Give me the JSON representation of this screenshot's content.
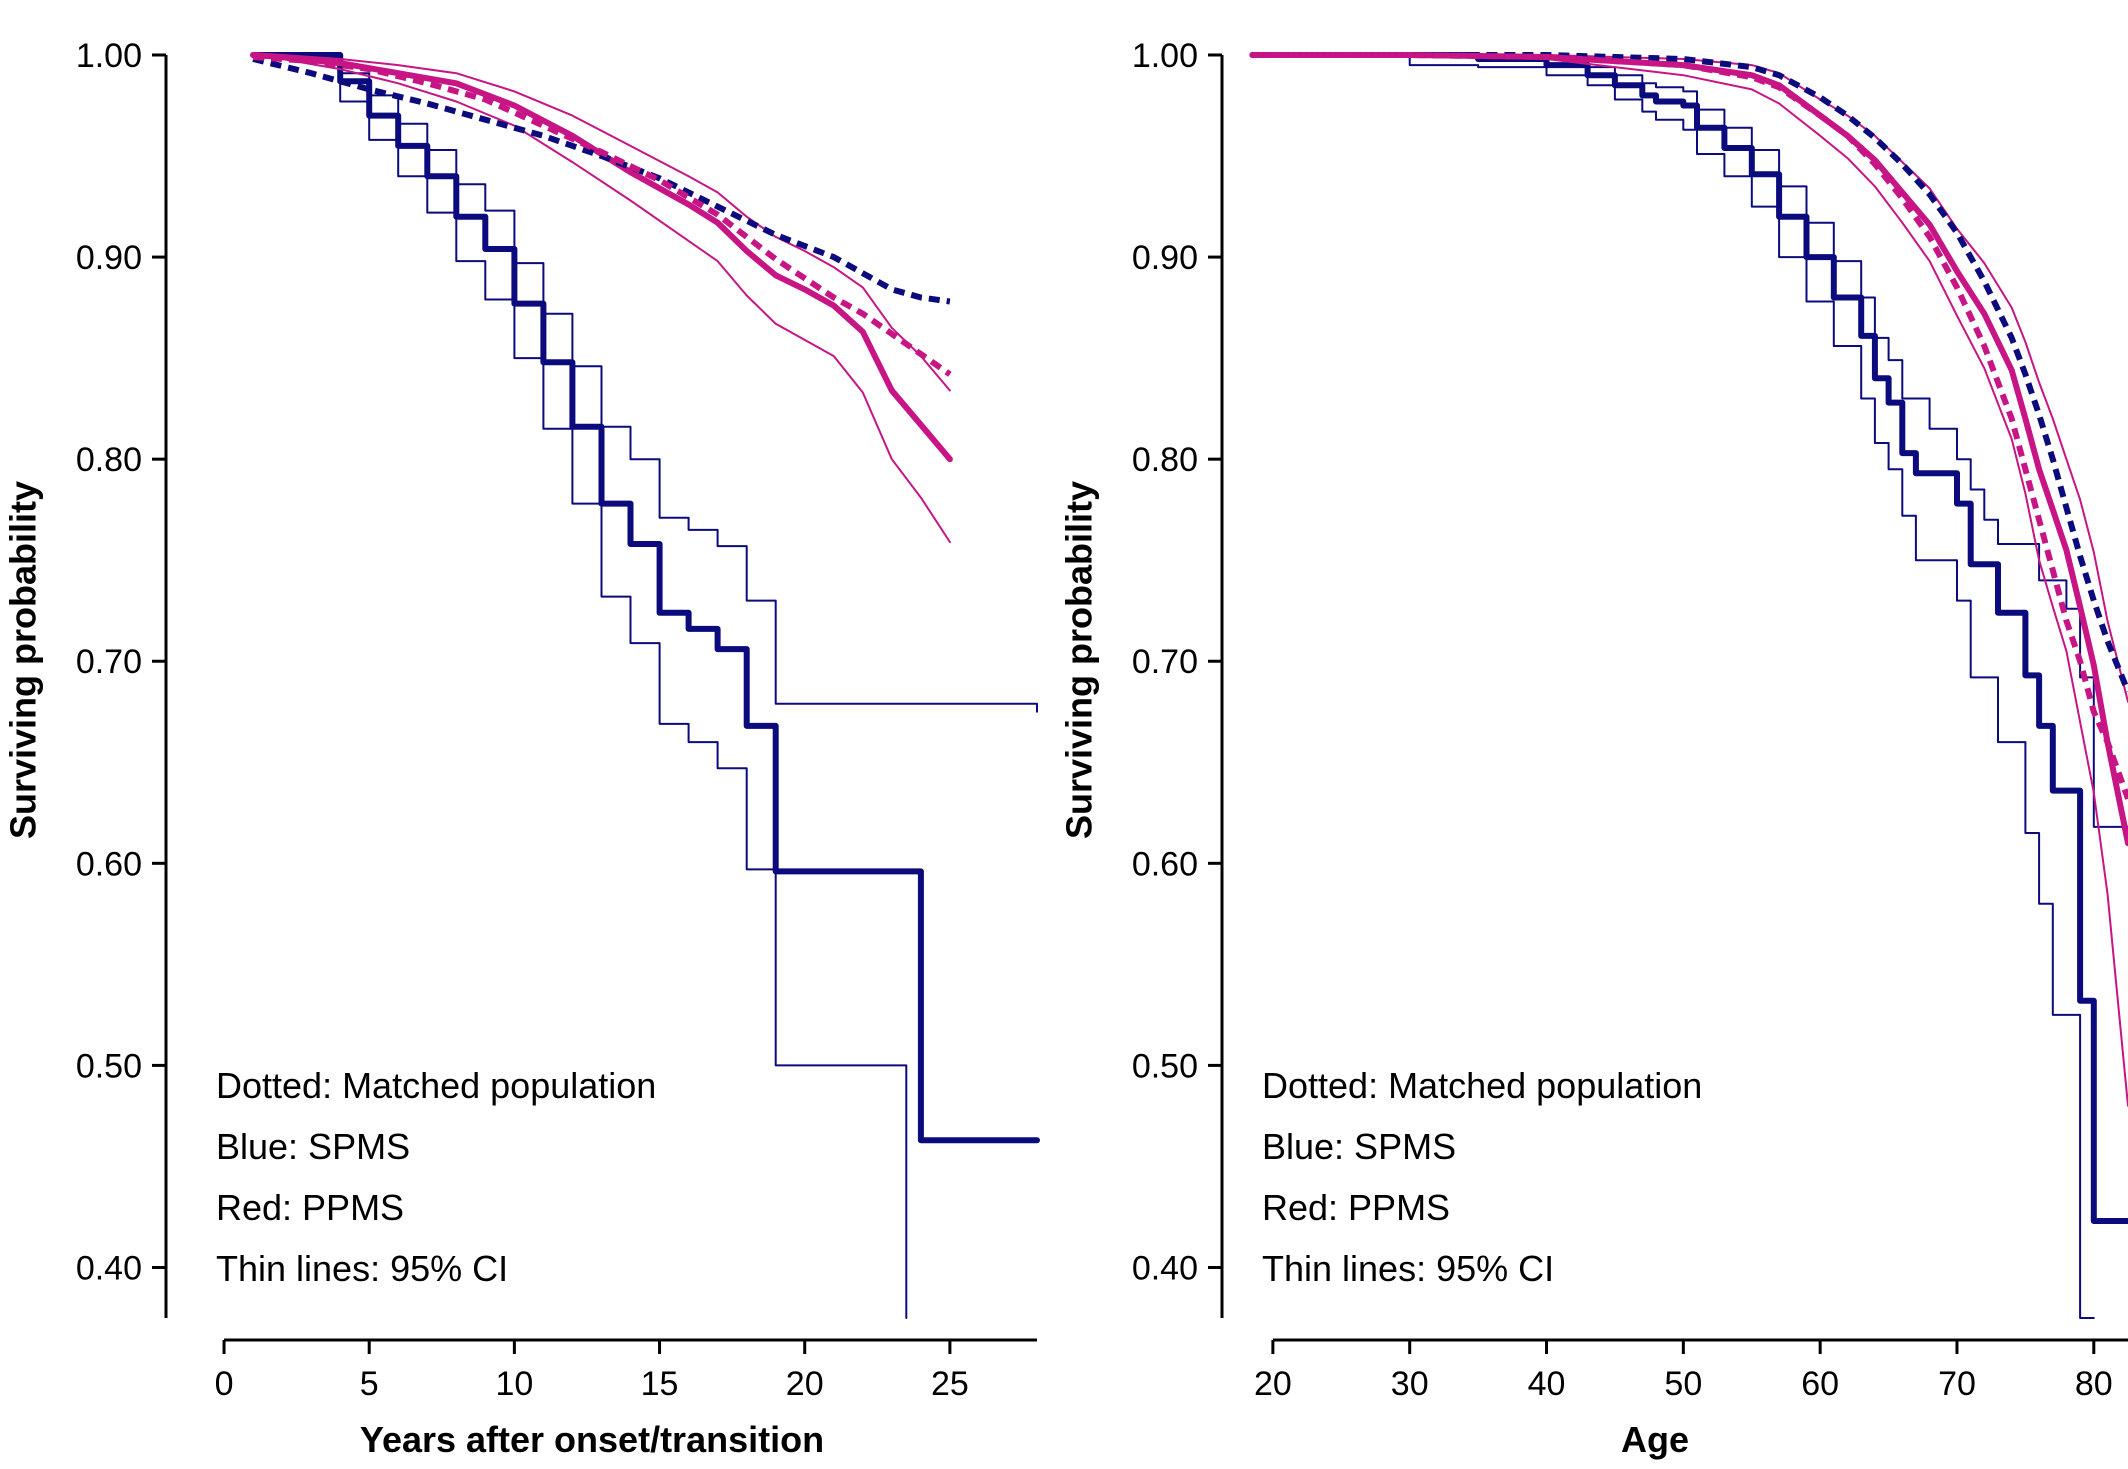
{
  "colors": {
    "spms": "#0b0b7e",
    "ppms": "#c71585"
  },
  "chart_data": [
    {
      "type": "line",
      "xlabel": "Years after onset/transition",
      "ylabel": "Surviving probability",
      "xlim": [
        -1,
        28
      ],
      "ylim": [
        0.375,
        1.0
      ],
      "xticks": [
        0,
        5,
        10,
        15,
        20,
        25
      ],
      "xtick_labels": [
        "0",
        "5",
        "10",
        "15",
        "20",
        "25"
      ],
      "yticks": [
        0.4,
        0.5,
        0.6,
        0.7,
        0.8,
        0.9,
        1.0
      ],
      "ytick_labels": [
        "0.40",
        "0.50",
        "0.60",
        "0.70",
        "0.80",
        "0.90",
        "1.00"
      ],
      "grid": false,
      "legend": [
        "Dotted: Matched population",
        "Blue: SPMS",
        "Red: PPMS",
        "Thin lines: 95% CI"
      ],
      "legend_position": "bottom-left",
      "series": [
        {
          "name": "Blue: SPMS",
          "color": "#0b0b7e",
          "style": "solid",
          "weight": "thick",
          "step": true,
          "x": [
            1,
            4,
            5,
            6,
            7,
            8,
            9,
            10,
            11,
            12,
            13,
            14,
            15,
            16,
            17,
            18,
            19,
            23,
            24,
            28
          ],
          "y": [
            1.0,
            0.987,
            0.97,
            0.955,
            0.94,
            0.92,
            0.904,
            0.877,
            0.848,
            0.816,
            0.778,
            0.758,
            0.724,
            0.716,
            0.706,
            0.668,
            0.596,
            0.596,
            0.463,
            0.463
          ]
        },
        {
          "name": "",
          "color": "#0b0b7e",
          "style": "solid",
          "weight": "thin",
          "step": true,
          "x": [
            1,
            4,
            5,
            6,
            7,
            8,
            9,
            10,
            11,
            12,
            13,
            14,
            15,
            16,
            17,
            18,
            19,
            23,
            28
          ],
          "y": [
            1.0,
            0.991,
            0.98,
            0.966,
            0.953,
            0.936,
            0.923,
            0.897,
            0.872,
            0.846,
            0.816,
            0.8,
            0.771,
            0.765,
            0.757,
            0.73,
            0.679,
            0.679,
            0.675
          ]
        },
        {
          "name": "",
          "color": "#0b0b7e",
          "style": "solid",
          "weight": "thin",
          "step": true,
          "x": [
            1,
            4,
            5,
            6,
            7,
            8,
            9,
            10,
            11,
            12,
            13,
            14,
            15,
            16,
            17,
            18,
            19,
            23,
            23.5
          ],
          "y": [
            1.0,
            0.977,
            0.958,
            0.94,
            0.922,
            0.898,
            0.879,
            0.85,
            0.815,
            0.778,
            0.732,
            0.709,
            0.669,
            0.66,
            0.647,
            0.597,
            0.5,
            0.5,
            0.375
          ]
        },
        {
          "name": "Red: PPMS",
          "color": "#c71585",
          "style": "solid",
          "weight": "thick",
          "step": false,
          "x": [
            1,
            2,
            4,
            6,
            8,
            10,
            12,
            14,
            16,
            17,
            18,
            19,
            20,
            21,
            22,
            23,
            24,
            25
          ],
          "y": [
            1.0,
            0.999,
            0.996,
            0.991,
            0.986,
            0.975,
            0.96,
            0.942,
            0.926,
            0.917,
            0.903,
            0.891,
            0.884,
            0.876,
            0.863,
            0.834,
            0.817,
            0.8
          ]
        },
        {
          "name": "",
          "color": "#c71585",
          "style": "solid",
          "weight": "thin",
          "step": false,
          "x": [
            1,
            2,
            4,
            6,
            8,
            10,
            12,
            14,
            16,
            17,
            18,
            19,
            20,
            21,
            22,
            23,
            24,
            25
          ],
          "y": [
            1.0,
            1.0,
            0.998,
            0.995,
            0.991,
            0.982,
            0.97,
            0.955,
            0.94,
            0.932,
            0.92,
            0.91,
            0.903,
            0.895,
            0.885,
            0.865,
            0.851,
            0.834
          ]
        },
        {
          "name": "",
          "color": "#c71585",
          "style": "solid",
          "weight": "thin",
          "step": false,
          "x": [
            1,
            2,
            4,
            6,
            8,
            10,
            12,
            14,
            16,
            17,
            18,
            19,
            20,
            21,
            22,
            23,
            24,
            25
          ],
          "y": [
            1.0,
            0.998,
            0.993,
            0.986,
            0.977,
            0.965,
            0.947,
            0.928,
            0.908,
            0.898,
            0.881,
            0.867,
            0.859,
            0.851,
            0.833,
            0.8,
            0.781,
            0.759
          ]
        },
        {
          "name": "Dotted: Matched population",
          "color": "#0b0b7e",
          "style": "dotted",
          "weight": "thick",
          "step": false,
          "x": [
            1,
            3,
            5,
            7,
            9,
            11,
            13,
            15,
            17,
            19,
            21,
            22,
            23,
            24,
            25
          ],
          "y": [
            0.998,
            0.991,
            0.983,
            0.976,
            0.968,
            0.96,
            0.95,
            0.939,
            0.925,
            0.911,
            0.9,
            0.892,
            0.884,
            0.88,
            0.878
          ]
        },
        {
          "name": "",
          "color": "#c71585",
          "style": "dotted",
          "weight": "thick",
          "step": false,
          "x": [
            1,
            3,
            5,
            7,
            9,
            11,
            13,
            15,
            17,
            19,
            21,
            22,
            23,
            24,
            25
          ],
          "y": [
            0.999,
            0.997,
            0.993,
            0.986,
            0.978,
            0.965,
            0.952,
            0.938,
            0.921,
            0.899,
            0.88,
            0.872,
            0.862,
            0.852,
            0.842
          ]
        }
      ]
    },
    {
      "type": "line",
      "xlabel": "Age",
      "ylabel": "Surviving probability",
      "xlim": [
        16.5,
        82.5
      ],
      "ylim": [
        0.375,
        1.0
      ],
      "xticks": [
        20,
        30,
        40,
        50,
        60,
        70,
        80
      ],
      "xtick_labels": [
        "20",
        "30",
        "40",
        "50",
        "60",
        "70",
        "80"
      ],
      "yticks": [
        0.4,
        0.5,
        0.6,
        0.7,
        0.8,
        0.9,
        1.0
      ],
      "ytick_labels": [
        "0.40",
        "0.50",
        "0.60",
        "0.70",
        "0.80",
        "0.90",
        "1.00"
      ],
      "grid": false,
      "legend": [
        "Dotted: Matched population",
        "Blue: SPMS",
        "Red: PPMS",
        "Thin lines: 95% CI"
      ],
      "legend_position": "bottom-left",
      "series": [
        {
          "name": "Blue: SPMS",
          "color": "#0b0b7e",
          "style": "solid",
          "weight": "thick",
          "step": true,
          "x": [
            18.5,
            30,
            35,
            40,
            43,
            45,
            47,
            48,
            50,
            51,
            53,
            55,
            57,
            59,
            61,
            63,
            64,
            65,
            66,
            67,
            68,
            70,
            71,
            72,
            73,
            75,
            76,
            77,
            78,
            79,
            80,
            81,
            82.5
          ],
          "y": [
            1.0,
            1.0,
            0.998,
            0.995,
            0.99,
            0.985,
            0.98,
            0.977,
            0.975,
            0.964,
            0.954,
            0.941,
            0.92,
            0.9,
            0.88,
            0.861,
            0.84,
            0.828,
            0.803,
            0.793,
            0.793,
            0.778,
            0.748,
            0.748,
            0.724,
            0.693,
            0.668,
            0.636,
            0.636,
            0.532,
            0.423,
            0.423,
            0.423
          ]
        },
        {
          "name": "",
          "color": "#0b0b7e",
          "style": "solid",
          "weight": "thin",
          "step": true,
          "x": [
            18.5,
            30,
            35,
            40,
            43,
            45,
            47,
            48,
            50,
            51,
            53,
            55,
            57,
            59,
            61,
            63,
            64,
            65,
            66,
            67,
            68,
            70,
            71,
            72,
            73,
            75,
            76,
            77,
            78,
            79,
            80,
            82.5
          ],
          "y": [
            1.0,
            1.0,
            0.999,
            0.998,
            0.994,
            0.99,
            0.986,
            0.984,
            0.982,
            0.973,
            0.964,
            0.953,
            0.935,
            0.917,
            0.898,
            0.88,
            0.86,
            0.849,
            0.83,
            0.83,
            0.815,
            0.8,
            0.785,
            0.77,
            0.758,
            0.758,
            0.74,
            0.74,
            0.726,
            0.692,
            0.618,
            0.618
          ]
        },
        {
          "name": "",
          "color": "#0b0b7e",
          "style": "solid",
          "weight": "thin",
          "step": true,
          "x": [
            18.5,
            30,
            35,
            40,
            43,
            45,
            47,
            48,
            50,
            51,
            53,
            55,
            57,
            59,
            61,
            63,
            64,
            65,
            66,
            67,
            68,
            70,
            71,
            72,
            73,
            75,
            76,
            77,
            78,
            79,
            80
          ],
          "y": [
            1.0,
            0.995,
            0.994,
            0.99,
            0.985,
            0.978,
            0.972,
            0.968,
            0.963,
            0.951,
            0.94,
            0.925,
            0.9,
            0.878,
            0.856,
            0.83,
            0.808,
            0.795,
            0.772,
            0.75,
            0.75,
            0.73,
            0.692,
            0.692,
            0.66,
            0.615,
            0.58,
            0.525,
            0.525,
            0.375,
            0.375
          ]
        },
        {
          "name": "Red: PPMS",
          "color": "#c71585",
          "style": "solid",
          "weight": "thick",
          "step": false,
          "x": [
            18.5,
            30,
            40,
            45,
            50,
            55,
            57,
            60,
            62,
            64,
            66,
            68,
            70,
            72,
            74,
            75,
            76,
            77,
            78,
            79,
            80,
            81,
            82.5
          ],
          "y": [
            1.0,
            1.0,
            0.999,
            0.997,
            0.995,
            0.99,
            0.985,
            0.97,
            0.96,
            0.948,
            0.932,
            0.916,
            0.893,
            0.872,
            0.844,
            0.82,
            0.795,
            0.775,
            0.755,
            0.727,
            0.698,
            0.66,
            0.61
          ]
        },
        {
          "name": "",
          "color": "#c71585",
          "style": "solid",
          "weight": "thin",
          "step": false,
          "x": [
            18.5,
            30,
            40,
            45,
            50,
            55,
            57,
            60,
            62,
            64,
            66,
            68,
            70,
            72,
            74,
            75,
            76,
            77,
            78,
            79,
            80,
            81,
            82.5
          ],
          "y": [
            1.0,
            1.0,
            1.0,
            0.999,
            0.998,
            0.995,
            0.991,
            0.978,
            0.97,
            0.96,
            0.947,
            0.934,
            0.914,
            0.897,
            0.875,
            0.858,
            0.838,
            0.82,
            0.8,
            0.78,
            0.754,
            0.72,
            0.68
          ]
        },
        {
          "name": "",
          "color": "#c71585",
          "style": "solid",
          "weight": "thin",
          "step": false,
          "x": [
            18.5,
            30,
            40,
            45,
            50,
            55,
            57,
            60,
            62,
            64,
            66,
            68,
            70,
            72,
            74,
            75,
            76,
            77,
            78,
            79,
            80,
            81,
            82.5
          ],
          "y": [
            1.0,
            1.0,
            0.998,
            0.994,
            0.99,
            0.983,
            0.976,
            0.96,
            0.949,
            0.935,
            0.917,
            0.898,
            0.871,
            0.845,
            0.81,
            0.783,
            0.75,
            0.727,
            0.705,
            0.67,
            0.635,
            0.585,
            0.48
          ]
        },
        {
          "name": "Dotted: Matched population",
          "color": "#0b0b7e",
          "style": "dotted",
          "weight": "thick",
          "step": false,
          "x": [
            18.5,
            30,
            40,
            45,
            50,
            55,
            57,
            60,
            62,
            64,
            66,
            68,
            70,
            72,
            74,
            75,
            76,
            77,
            78,
            79,
            80,
            81,
            82.5
          ],
          "y": [
            1.0,
            1.0,
            1.0,
            0.999,
            0.998,
            0.994,
            0.99,
            0.979,
            0.97,
            0.959,
            0.946,
            0.931,
            0.912,
            0.888,
            0.86,
            0.842,
            0.822,
            0.8,
            0.776,
            0.752,
            0.73,
            0.71,
            0.685
          ]
        },
        {
          "name": "",
          "color": "#c71585",
          "style": "dotted",
          "weight": "thick",
          "step": false,
          "x": [
            18.5,
            30,
            40,
            45,
            50,
            55,
            57,
            60,
            62,
            64,
            66,
            68,
            70,
            72,
            74,
            75,
            76,
            77,
            78,
            79,
            80,
            81,
            82.5
          ],
          "y": [
            1.0,
            1.0,
            0.999,
            0.997,
            0.995,
            0.989,
            0.984,
            0.97,
            0.96,
            0.946,
            0.929,
            0.91,
            0.885,
            0.856,
            0.82,
            0.795,
            0.77,
            0.745,
            0.72,
            0.7,
            0.675,
            0.66,
            0.632
          ]
        }
      ]
    }
  ]
}
